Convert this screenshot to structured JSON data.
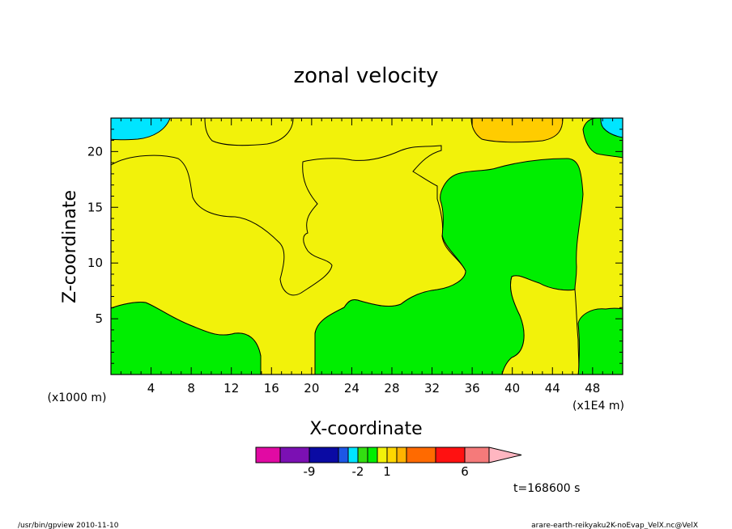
{
  "chart_data": {
    "type": "contour",
    "title": "zonal velocity",
    "xlabel": "X-coordinate",
    "ylabel": "Z-coordinate",
    "x_unit_note": "(x1E4 m)",
    "y_unit_note": "(x1000 m)",
    "xlim": [
      0,
      51
    ],
    "ylim": [
      0,
      23
    ],
    "x_ticks": [
      "4",
      "8",
      "12",
      "16",
      "20",
      "24",
      "28",
      "32",
      "36",
      "40",
      "44",
      "48"
    ],
    "y_ticks": [
      "5",
      "10",
      "15",
      "20"
    ],
    "colorbar": {
      "labels": [
        "-9",
        "-2",
        "1",
        "6"
      ],
      "bins": [
        {
          "color": "#e10aa3",
          "level": -11
        },
        {
          "color": "#7b10b3",
          "level": -9
        },
        {
          "color": "#0a0aa3",
          "level": -7
        },
        {
          "color": "#1d57e6",
          "level": -3
        },
        {
          "color": "#00e5ff",
          "level": -2
        },
        {
          "color": "#33dd11",
          "level": -1
        },
        {
          "color": "#00ee00",
          "level": 0
        },
        {
          "color": "#f2f20a",
          "level": 1
        },
        {
          "color": "#ffd700",
          "level": 2
        },
        {
          "color": "#ffb300",
          "level": 3
        },
        {
          "color": "#ff6a00",
          "level": 4
        },
        {
          "color": "#ff1111",
          "level": 6
        },
        {
          "color": "#f57a7a",
          "level": 8
        }
      ],
      "arrow_color": "#ffb6c1"
    },
    "region_colors": {
      "background": "#f2f20a",
      "green": "#00ee00",
      "cyan": "#00e5ff",
      "orange": "#ffcc00"
    },
    "time_label": "t=168600 s"
  },
  "footer": {
    "left": "/usr/bin/gpview   2010-11-10",
    "right": "arare-earth-reikyaku2K-noEvap_VelX.nc@VelX"
  }
}
